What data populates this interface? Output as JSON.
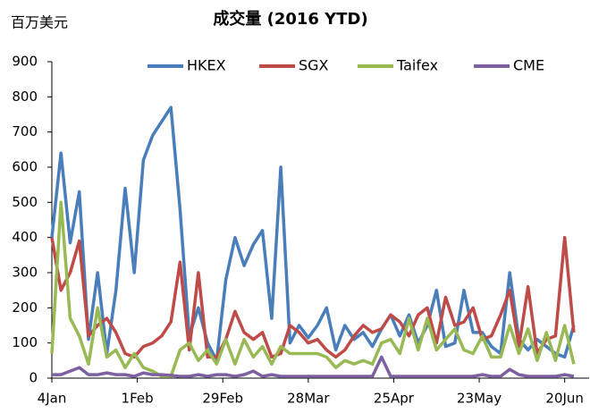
{
  "chart_data": {
    "type": "line",
    "title": "成交量 (2016 YTD)",
    "y_label": "百万美元",
    "x": [
      0,
      3,
      6,
      9,
      12,
      15,
      18,
      21,
      24,
      27,
      30,
      33,
      36,
      39,
      42,
      45,
      48,
      51,
      54,
      57,
      60,
      63,
      66,
      69,
      72,
      75,
      78,
      81,
      84,
      87,
      90,
      93,
      96,
      99,
      102,
      105,
      108,
      111,
      114,
      117,
      120,
      123,
      126,
      129,
      132,
      135,
      138,
      141,
      144,
      147,
      150,
      153,
      156,
      159,
      162,
      165,
      168,
      171
    ],
    "series": [
      {
        "name": "HKEX",
        "color": "#4a7ebb",
        "values": [
          400,
          640,
          385,
          530,
          110,
          300,
          70,
          250,
          540,
          300,
          620,
          690,
          730,
          770,
          480,
          120,
          200,
          100,
          50,
          280,
          400,
          320,
          380,
          420,
          170,
          600,
          100,
          150,
          115,
          150,
          200,
          80,
          150,
          110,
          130,
          90,
          140,
          180,
          120,
          180,
          100,
          150,
          250,
          90,
          100,
          250,
          130,
          130,
          90,
          70,
          300,
          110,
          80,
          110,
          90,
          70,
          60,
          150
        ]
      },
      {
        "name": "SGX",
        "color": "#be4b48",
        "values": [
          400,
          250,
          300,
          390,
          120,
          150,
          170,
          130,
          70,
          60,
          90,
          100,
          120,
          160,
          330,
          80,
          300,
          60,
          60,
          110,
          190,
          130,
          110,
          130,
          60,
          70,
          150,
          130,
          100,
          110,
          80,
          60,
          80,
          120,
          150,
          130,
          140,
          180,
          160,
          120,
          180,
          200,
          100,
          230,
          150,
          160,
          200,
          110,
          120,
          180,
          250,
          90,
          260,
          70,
          110,
          120,
          400,
          130
        ]
      },
      {
        "name": "Taifex",
        "color": "#98b954",
        "values": [
          70,
          500,
          170,
          120,
          40,
          200,
          60,
          80,
          30,
          70,
          30,
          20,
          5,
          5,
          80,
          100,
          50,
          80,
          40,
          110,
          40,
          110,
          60,
          90,
          40,
          90,
          70,
          70,
          70,
          70,
          60,
          30,
          50,
          40,
          50,
          40,
          100,
          110,
          70,
          170,
          80,
          170,
          80,
          110,
          140,
          80,
          70,
          120,
          60,
          60,
          150,
          70,
          140,
          50,
          130,
          50,
          150,
          40
        ]
      },
      {
        "name": "CME",
        "color": "#7d60a0",
        "values": [
          10,
          10,
          20,
          30,
          10,
          10,
          15,
          10,
          10,
          5,
          15,
          10,
          10,
          8,
          5,
          5,
          10,
          5,
          10,
          10,
          5,
          10,
          20,
          5,
          10,
          5,
          5,
          5,
          5,
          5,
          5,
          5,
          5,
          5,
          5,
          5,
          60,
          5,
          5,
          5,
          5,
          5,
          5,
          5,
          5,
          5,
          5,
          10,
          5,
          5,
          25,
          10,
          5,
          5,
          5,
          5,
          10,
          5
        ]
      }
    ],
    "xlim": [
      0,
      176
    ],
    "xticks": [
      {
        "value": 0,
        "label": "4Jan"
      },
      {
        "value": 28,
        "label": "1Feb"
      },
      {
        "value": 56,
        "label": "29Feb"
      },
      {
        "value": 84,
        "label": "28Mar"
      },
      {
        "value": 112,
        "label": "25Apr"
      },
      {
        "value": 140,
        "label": "23May"
      },
      {
        "value": 168,
        "label": "20Jun"
      }
    ],
    "ylim": [
      0,
      900
    ],
    "yticks": [
      0,
      100,
      200,
      300,
      400,
      500,
      600,
      700,
      800,
      900
    ],
    "legend": "top"
  }
}
